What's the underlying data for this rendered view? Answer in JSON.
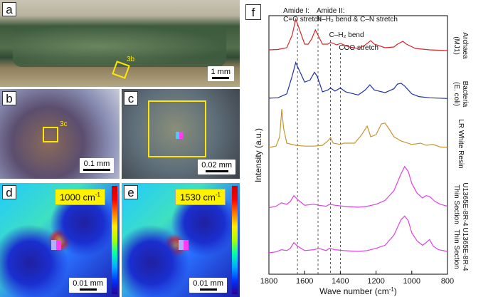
{
  "panels": {
    "a": {
      "label": "a",
      "scale": "1 mm",
      "box_label": "3b"
    },
    "b": {
      "label": "b",
      "scale": "0.1 mm",
      "box_label": "3c"
    },
    "c": {
      "label": "c",
      "scale": "0.02 mm"
    },
    "d": {
      "label": "d",
      "scale": "0.01 mm",
      "wavenumber": "1000 cm",
      "wavenumber_sup": "-1"
    },
    "e": {
      "label": "e",
      "scale": "0.01 mm",
      "wavenumber": "1530 cm",
      "wavenumber_sup": "-1"
    },
    "f": {
      "label": "f"
    }
  },
  "chart_data": {
    "type": "line",
    "xlabel": "Wave number (cm",
    "xlabel_sup": "-1",
    "xlabel_end": ")",
    "ylabel": "Intensity (a.u.)",
    "xlim": [
      1800,
      800
    ],
    "xticks": [
      1800,
      1600,
      1400,
      1200,
      1000,
      800
    ],
    "annotations": [
      {
        "lines": [
          "Amide I:",
          "C=O stretch"
        ],
        "x": 1640
      },
      {
        "lines": [
          "Amide II:",
          "N–H₂ bend & C–N stretch"
        ],
        "x": 1525
      },
      {
        "lines": [
          "C–H₂ bend"
        ],
        "x": 1455
      },
      {
        "lines": [
          "COO stretch"
        ],
        "x": 1400
      }
    ],
    "series": [
      {
        "name": "Archaea (MJ1)",
        "name_lines": [
          "Archaea",
          "(MJ1)"
        ],
        "color": "#d62728",
        "points": [
          [
            1800,
            0.04
          ],
          [
            1750,
            0.05
          ],
          [
            1700,
            0.1
          ],
          [
            1670,
            0.45
          ],
          [
            1650,
            0.9
          ],
          [
            1635,
            0.7
          ],
          [
            1600,
            0.2
          ],
          [
            1580,
            0.2
          ],
          [
            1560,
            0.35
          ],
          [
            1540,
            0.6
          ],
          [
            1525,
            0.45
          ],
          [
            1500,
            0.2
          ],
          [
            1470,
            0.2
          ],
          [
            1455,
            0.25
          ],
          [
            1420,
            0.18
          ],
          [
            1400,
            0.22
          ],
          [
            1350,
            0.12
          ],
          [
            1300,
            0.08
          ],
          [
            1260,
            0.18
          ],
          [
            1230,
            0.3
          ],
          [
            1210,
            0.2
          ],
          [
            1150,
            0.1
          ],
          [
            1100,
            0.12
          ],
          [
            1080,
            0.2
          ],
          [
            1050,
            0.28
          ],
          [
            1030,
            0.2
          ],
          [
            980,
            0.08
          ],
          [
            900,
            0.04
          ],
          [
            850,
            0.03
          ],
          [
            800,
            0.02
          ]
        ]
      },
      {
        "name": "Bacteria (E. coli)",
        "name_lines": [
          "Bacteria",
          "(E. coli)"
        ],
        "color": "#1f2fa8",
        "points": [
          [
            1800,
            0.04
          ],
          [
            1750,
            0.05
          ],
          [
            1700,
            0.15
          ],
          [
            1670,
            0.6
          ],
          [
            1650,
            0.95
          ],
          [
            1635,
            0.8
          ],
          [
            1600,
            0.45
          ],
          [
            1570,
            0.5
          ],
          [
            1545,
            0.7
          ],
          [
            1530,
            0.6
          ],
          [
            1500,
            0.2
          ],
          [
            1470,
            0.25
          ],
          [
            1455,
            0.3
          ],
          [
            1430,
            0.22
          ],
          [
            1400,
            0.3
          ],
          [
            1370,
            0.2
          ],
          [
            1300,
            0.12
          ],
          [
            1260,
            0.25
          ],
          [
            1235,
            0.38
          ],
          [
            1210,
            0.25
          ],
          [
            1150,
            0.18
          ],
          [
            1100,
            0.28
          ],
          [
            1080,
            0.4
          ],
          [
            1060,
            0.42
          ],
          [
            1040,
            0.35
          ],
          [
            1000,
            0.15
          ],
          [
            960,
            0.08
          ],
          [
            900,
            0.05
          ],
          [
            800,
            0.03
          ]
        ]
      },
      {
        "name": "LR White Resin",
        "name_lines": [
          "LR White Resin"
        ],
        "color": "#c8962e",
        "points": [
          [
            1800,
            0.05
          ],
          [
            1760,
            0.08
          ],
          [
            1740,
            0.3
          ],
          [
            1728,
            0.95
          ],
          [
            1718,
            0.5
          ],
          [
            1700,
            0.15
          ],
          [
            1650,
            0.1
          ],
          [
            1600,
            0.08
          ],
          [
            1550,
            0.08
          ],
          [
            1500,
            0.1
          ],
          [
            1470,
            0.2
          ],
          [
            1455,
            0.28
          ],
          [
            1440,
            0.15
          ],
          [
            1400,
            0.12
          ],
          [
            1380,
            0.15
          ],
          [
            1320,
            0.15
          ],
          [
            1280,
            0.35
          ],
          [
            1250,
            0.55
          ],
          [
            1230,
            0.3
          ],
          [
            1200,
            0.35
          ],
          [
            1170,
            0.6
          ],
          [
            1150,
            0.62
          ],
          [
            1130,
            0.5
          ],
          [
            1100,
            0.3
          ],
          [
            1060,
            0.2
          ],
          [
            1000,
            0.12
          ],
          [
            950,
            0.15
          ],
          [
            920,
            0.1
          ],
          [
            880,
            0.12
          ],
          [
            840,
            0.06
          ],
          [
            800,
            0.05
          ]
        ]
      },
      {
        "name": "U1365E-8R-4 Thin Section",
        "name_lines": [
          "U1365E-8R-4",
          "Thin Section"
        ],
        "color": "#e040e0",
        "points": [
          [
            1800,
            0.05
          ],
          [
            1760,
            0.08
          ],
          [
            1730,
            0.15
          ],
          [
            1700,
            0.12
          ],
          [
            1680,
            0.18
          ],
          [
            1660,
            0.3
          ],
          [
            1640,
            0.22
          ],
          [
            1600,
            0.1
          ],
          [
            1550,
            0.12
          ],
          [
            1520,
            0.1
          ],
          [
            1480,
            0.08
          ],
          [
            1460,
            0.12
          ],
          [
            1430,
            0.1
          ],
          [
            1380,
            0.08
          ],
          [
            1300,
            0.06
          ],
          [
            1250,
            0.08
          ],
          [
            1200,
            0.12
          ],
          [
            1150,
            0.2
          ],
          [
            1100,
            0.4
          ],
          [
            1060,
            0.75
          ],
          [
            1040,
            0.9
          ],
          [
            1020,
            0.8
          ],
          [
            1000,
            0.55
          ],
          [
            970,
            0.35
          ],
          [
            940,
            0.25
          ],
          [
            920,
            0.3
          ],
          [
            900,
            0.28
          ],
          [
            870,
            0.18
          ],
          [
            840,
            0.12
          ],
          [
            800,
            0.08
          ]
        ]
      },
      {
        "name": "U1365E-8R-4 Thin Section",
        "name_lines": [
          "U1365E-8R-4",
          "Thin Section"
        ],
        "color": "#e040e0",
        "points": [
          [
            1800,
            0.05
          ],
          [
            1760,
            0.07
          ],
          [
            1730,
            0.12
          ],
          [
            1700,
            0.1
          ],
          [
            1680,
            0.15
          ],
          [
            1660,
            0.28
          ],
          [
            1640,
            0.2
          ],
          [
            1600,
            0.1
          ],
          [
            1550,
            0.12
          ],
          [
            1520,
            0.15
          ],
          [
            1480,
            0.1
          ],
          [
            1460,
            0.15
          ],
          [
            1430,
            0.12
          ],
          [
            1380,
            0.1
          ],
          [
            1300,
            0.08
          ],
          [
            1250,
            0.1
          ],
          [
            1200,
            0.15
          ],
          [
            1150,
            0.22
          ],
          [
            1100,
            0.45
          ],
          [
            1060,
            0.8
          ],
          [
            1040,
            0.88
          ],
          [
            1020,
            0.78
          ],
          [
            1000,
            0.5
          ],
          [
            970,
            0.32
          ],
          [
            940,
            0.22
          ],
          [
            920,
            0.28
          ],
          [
            900,
            0.35
          ],
          [
            880,
            0.2
          ],
          [
            850,
            0.12
          ],
          [
            800,
            0.08
          ]
        ]
      }
    ]
  }
}
